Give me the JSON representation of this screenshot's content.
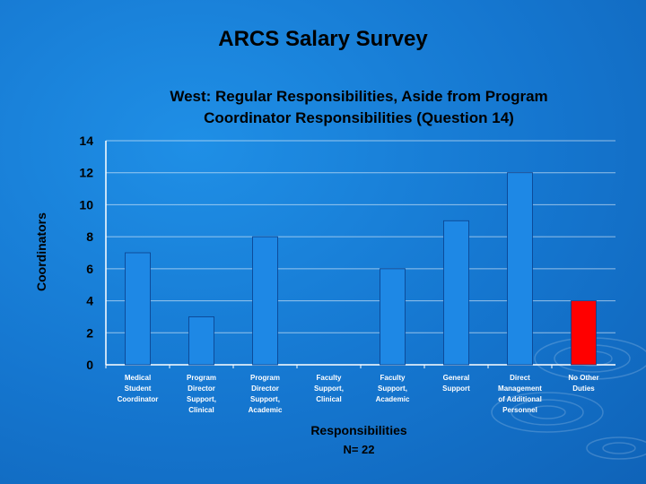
{
  "slide": {
    "title": "ARCS Salary Survey"
  },
  "chart_data": {
    "type": "bar",
    "title_lines": [
      "West: Regular Responsibilities, Aside from Program",
      "Coordinator Responsibilities (Question 14)"
    ],
    "ylabel": "Coordinators",
    "xlabel": "Responsibilities",
    "note": "N= 22",
    "ylim": [
      0,
      14
    ],
    "yticks": [
      0,
      2,
      4,
      6,
      8,
      10,
      12,
      14
    ],
    "grid": true,
    "legend": "none",
    "categories": [
      [
        "Medical",
        "Student",
        "Coordinator"
      ],
      [
        "Program",
        "Director",
        "Support,",
        "Clinical"
      ],
      [
        "Program",
        "Director",
        "Support,",
        "Academic"
      ],
      [
        "Faculty",
        "Support,",
        "Clinical"
      ],
      [
        "Faculty",
        "Support,",
        "Academic"
      ],
      [
        "General",
        "Support"
      ],
      [
        "Direct",
        "Management",
        "of Additional",
        "Personnel"
      ],
      [
        "No Other",
        "Duties"
      ]
    ],
    "values": [
      7,
      3,
      8,
      0,
      6,
      9,
      12,
      4
    ],
    "colors": [
      "#1e88e5",
      "#1e88e5",
      "#1e88e5",
      "#1e88e5",
      "#1e88e5",
      "#1e88e5",
      "#1e88e5",
      "#ff0000"
    ]
  }
}
